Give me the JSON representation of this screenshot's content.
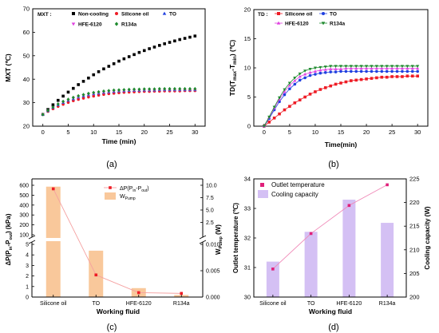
{
  "panels": {
    "a": {
      "caption": "(a)",
      "ylabel": "MXT (℃)",
      "xlabel": "Time (min)",
      "legend_prefix": "MXT :"
    },
    "b": {
      "caption": "(b)",
      "ylabel": "TD(T",
      "ylabel_sub1": "max",
      "ylabel_mid": "-T",
      "ylabel_sub2": "min",
      "ylabel_end": ") (℃)",
      "xlabel": "Time(min)",
      "legend_prefix": "TD :"
    },
    "c": {
      "caption": "(c)",
      "ylabel": "ΔP(P",
      "ylabel_sub1": "in",
      "ylabel_mid": "-P",
      "ylabel_sub2": "out",
      "ylabel_end": ") (kPa)",
      "y2label": "W",
      "y2label_sub": "Pump",
      "y2label_end": " (W)",
      "xlabel": "Working fluid",
      "legend_line": "ΔP(P",
      "legend_line_sub1": "in",
      "legend_line_mid": "-P",
      "legend_line_sub2": "out",
      "legend_line_end": ")",
      "legend_bar": "W",
      "legend_bar_sub": "Pump"
    },
    "d": {
      "caption": "(d)",
      "ylabel": "Outlet temperature (℃)",
      "y2label": "Cooling capacity (W)",
      "xlabel": "Working fluid",
      "legend_line": "Outlet temperature",
      "legend_bar": "Cooling capacity"
    }
  },
  "chart_data": [
    {
      "type": "scatter",
      "panel": "a",
      "x": [
        0,
        1,
        2,
        3,
        4,
        5,
        6,
        7,
        8,
        9,
        10,
        11,
        12,
        13,
        14,
        15,
        16,
        17,
        18,
        19,
        20,
        21,
        22,
        23,
        24,
        25,
        26,
        27,
        28,
        29,
        30
      ],
      "xticks": [
        0,
        5,
        10,
        15,
        20,
        25,
        30
      ],
      "yticks": [
        20,
        30,
        40,
        50,
        60,
        70
      ],
      "xlim": [
        -2,
        32
      ],
      "ylim": [
        20,
        70
      ],
      "series": [
        {
          "name": "Non-cooling",
          "color": "#000000",
          "marker": "square",
          "values": [
            25,
            27.1,
            29.1,
            31,
            32.8,
            34.5,
            36.1,
            37.7,
            39.1,
            40.5,
            41.9,
            43.2,
            44.4,
            45.5,
            46.6,
            47.7,
            48.7,
            49.6,
            50.5,
            51.4,
            52.2,
            53,
            53.7,
            54.4,
            55.1,
            55.7,
            56.3,
            56.9,
            57.4,
            57.9,
            58.4
          ]
        },
        {
          "name": "Silicone oil",
          "color": "#ee1c25",
          "marker": "circle",
          "values": [
            25,
            26.3,
            27.4,
            28.4,
            29.3,
            30.1,
            30.8,
            31.4,
            31.9,
            32.4,
            32.8,
            33.2,
            33.5,
            33.8,
            34,
            34.2,
            34.4,
            34.5,
            34.6,
            34.7,
            34.8,
            34.8,
            34.9,
            34.9,
            35,
            35,
            35,
            35,
            35.1,
            35.1,
            35.1
          ]
        },
        {
          "name": "TO",
          "color": "#1f3fe0",
          "marker": "triangle-up",
          "values": [
            25,
            26.5,
            27.9,
            29,
            30,
            30.9,
            31.6,
            32.3,
            32.8,
            33.3,
            33.7,
            34,
            34.3,
            34.5,
            34.7,
            34.9,
            35,
            35.1,
            35.2,
            35.2,
            35.3,
            35.3,
            35.3,
            35.4,
            35.4,
            35.4,
            35.4,
            35.4,
            35.4,
            35.4,
            35.4
          ]
        },
        {
          "name": "HFE-6120",
          "color": "#e040e0",
          "marker": "triangle-down",
          "values": [
            25,
            26.6,
            28,
            29.2,
            30.2,
            31.1,
            31.9,
            32.5,
            33.1,
            33.5,
            33.9,
            34.2,
            34.5,
            34.7,
            34.9,
            35,
            35.1,
            35.2,
            35.3,
            35.3,
            35.4,
            35.4,
            35.4,
            35.5,
            35.5,
            35.5,
            35.5,
            35.5,
            35.5,
            35.5,
            35.5
          ]
        },
        {
          "name": "R134a",
          "color": "#1e8a2e",
          "marker": "diamond",
          "values": [
            25,
            26.7,
            28.1,
            29.4,
            30.5,
            31.4,
            32.2,
            32.9,
            33.4,
            33.9,
            34.3,
            34.6,
            34.9,
            35.1,
            35.3,
            35.4,
            35.5,
            35.6,
            35.7,
            35.7,
            35.8,
            35.8,
            35.8,
            35.9,
            35.9,
            35.9,
            35.9,
            35.9,
            35.9,
            35.9,
            35.9
          ]
        }
      ]
    },
    {
      "type": "line",
      "panel": "b",
      "x": [
        0,
        1,
        2,
        3,
        4,
        5,
        6,
        7,
        8,
        9,
        10,
        11,
        12,
        13,
        14,
        15,
        16,
        17,
        18,
        19,
        20,
        21,
        22,
        23,
        24,
        25,
        26,
        27,
        28,
        29,
        30
      ],
      "xticks": [
        0,
        5,
        10,
        15,
        20,
        25,
        30
      ],
      "yticks": [
        0,
        5,
        10,
        15,
        20
      ],
      "xlim": [
        -2,
        32
      ],
      "ylim": [
        0,
        20
      ],
      "series": [
        {
          "name": "Silicone oil",
          "color": "#ee1c25",
          "marker": "square",
          "values": [
            0,
            0.7,
            1.4,
            2.1,
            2.8,
            3.4,
            4,
            4.5,
            5,
            5.5,
            5.9,
            6.3,
            6.6,
            6.9,
            7.2,
            7.4,
            7.6,
            7.8,
            7.9,
            8,
            8.1,
            8.2,
            8.3,
            8.4,
            8.4,
            8.5,
            8.5,
            8.5,
            8.6,
            8.6,
            8.6
          ]
        },
        {
          "name": "TO",
          "color": "#1f3fe0",
          "marker": "circle",
          "values": [
            0,
            1.3,
            2.8,
            4.2,
            5.4,
            6.4,
            7.2,
            7.9,
            8.3,
            8.7,
            8.9,
            9.1,
            9.2,
            9.3,
            9.3,
            9.4,
            9.4,
            9.4,
            9.4,
            9.4,
            9.4,
            9.4,
            9.4,
            9.4,
            9.4,
            9.4,
            9.4,
            9.4,
            9.4,
            9.4,
            9.4
          ]
        },
        {
          "name": "HFE-6120",
          "color": "#e040e0",
          "marker": "triangle-up",
          "values": [
            0,
            1.5,
            3.1,
            4.6,
            5.9,
            7,
            7.8,
            8.5,
            8.9,
            9.2,
            9.4,
            9.6,
            9.7,
            9.8,
            9.8,
            9.8,
            9.9,
            9.9,
            9.9,
            9.9,
            9.9,
            9.9,
            9.9,
            9.9,
            9.9,
            9.9,
            9.9,
            9.9,
            9.9,
            9.9,
            9.9
          ]
        },
        {
          "name": "R134a",
          "color": "#1e8a2e",
          "marker": "triangle-down",
          "values": [
            0,
            1.6,
            3.3,
            4.9,
            6.3,
            7.4,
            8.3,
            9,
            9.5,
            9.8,
            10,
            10.1,
            10.2,
            10.3,
            10.3,
            10.3,
            10.3,
            10.3,
            10.3,
            10.3,
            10.3,
            10.3,
            10.3,
            10.3,
            10.3,
            10.3,
            10.3,
            10.3,
            10.3,
            10.3,
            10.3
          ]
        }
      ]
    },
    {
      "type": "bar",
      "panel": "c",
      "categories": [
        "Silicone oil",
        "TO",
        "HFE-6120",
        "R134a"
      ],
      "broken_axis": true,
      "left_axis": {
        "lower": {
          "ylim": [
            0,
            5
          ],
          "yticks": [
            0,
            1,
            2,
            3,
            4,
            5
          ]
        },
        "upper": {
          "ylim": [
            100,
            600
          ],
          "yticks": [
            100,
            200,
            300,
            400,
            500,
            600
          ]
        }
      },
      "right_axis": {
        "lower": {
          "ylim": [
            0,
            0.01
          ],
          "yticks": [
            "0.000",
            "0.005",
            "0.010"
          ]
        },
        "upper": {
          "ylim": [
            0,
            10
          ],
          "yticks": [
            "2.5",
            "5.0",
            "7.5",
            "10.0"
          ]
        }
      },
      "series": [
        {
          "name": "ΔP(Pin-Pout)",
          "kind": "line",
          "axis": "left",
          "color": "#ee1c25",
          "line_color": "#f5a0a0",
          "values": [
            564,
            2.1,
            0.42,
            0.35
          ]
        },
        {
          "name": "WPump",
          "kind": "bar",
          "axis": "right",
          "color": "#f9c89b",
          "values": [
            9.72,
            0.0088,
            0.0017,
            0.0004
          ]
        }
      ]
    },
    {
      "type": "bar",
      "panel": "d",
      "categories": [
        "Silicone oil",
        "TO",
        "HFE-6120",
        "R134a"
      ],
      "left_axis": {
        "ylim": [
          30,
          34
        ],
        "yticks": [
          30,
          31,
          32,
          33,
          34
        ]
      },
      "right_axis": {
        "ylim": [
          200,
          225
        ],
        "yticks": [
          200,
          205,
          210,
          215,
          220,
          225
        ]
      },
      "series": [
        {
          "name": "Outlet temperature",
          "kind": "line",
          "axis": "left",
          "color": "#e0207a",
          "line_color": "#f08ab8",
          "values": [
            30.95,
            32.15,
            33.1,
            33.8
          ]
        },
        {
          "name": "Cooling capacity",
          "kind": "bar",
          "axis": "right",
          "color": "#d4c0f4",
          "values": [
            207.5,
            213.8,
            220.6,
            215.7
          ]
        }
      ]
    }
  ]
}
